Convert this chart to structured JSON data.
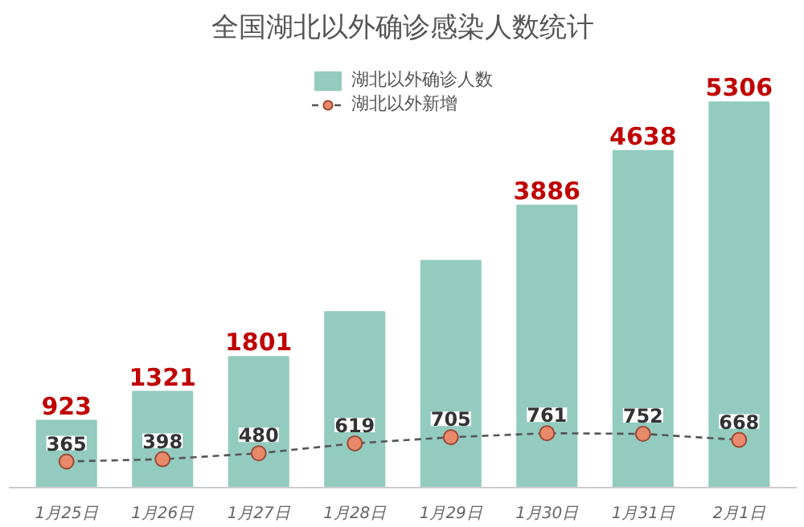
{
  "chart_data": {
    "type": "bar",
    "title": "全国湖北以外确诊感染人数统计",
    "categories": [
      "1月25日",
      "1月26日",
      "1月27日",
      "1月28日",
      "1月29日",
      "1月30日",
      "1月31日",
      "2月1日"
    ],
    "series": [
      {
        "name": "湖北以外确诊人数",
        "color": "#93cbbf",
        "values": [
          923,
          1321,
          1801,
          2420,
          3125,
          3886,
          4638,
          5306
        ],
        "value_labels": [
          "923",
          "1321",
          "1801",
          null,
          null,
          "3886",
          "4638",
          "5306"
        ]
      },
      {
        "name": "湖北以外新增",
        "type": "line",
        "axis": "y2",
        "color": "#e8896b",
        "values": [
          365,
          398,
          480,
          619,
          705,
          761,
          752,
          668
        ],
        "value_labels": [
          "365",
          "398",
          "480",
          "619",
          "705",
          "761",
          "752",
          "668"
        ]
      }
    ],
    "marker": "circle",
    "line_style": "dashed",
    "legend": "top",
    "grid": false,
    "tick_labels": "x"
  }
}
